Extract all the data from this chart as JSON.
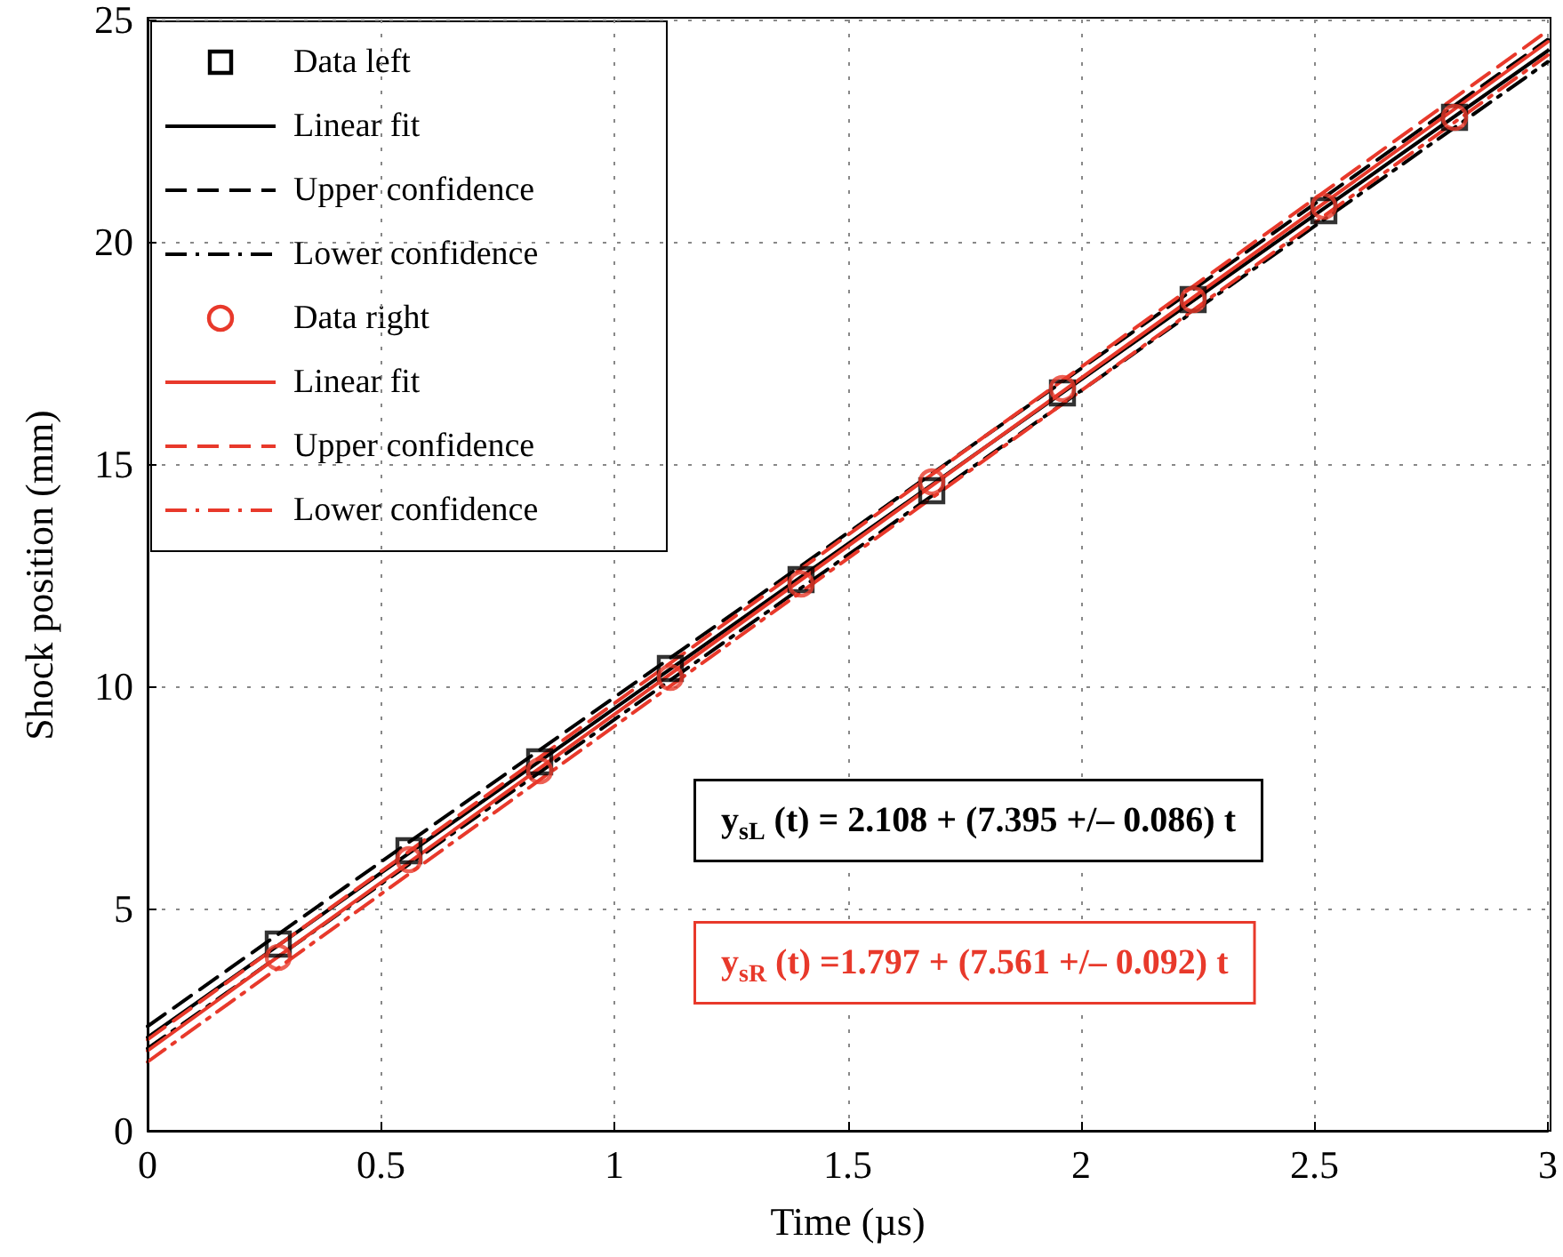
{
  "chart_data": {
    "type": "line",
    "xlabel": "Time (µs)",
    "ylabel": "Shock position (mm)",
    "xlim": [
      0,
      3
    ],
    "ylim": [
      0,
      25
    ],
    "xticks": [
      0,
      0.5,
      1,
      1.5,
      2,
      2.5,
      3
    ],
    "yticks": [
      0,
      5,
      10,
      15,
      20,
      25
    ],
    "grid": true,
    "legend": "top left",
    "annotations": [
      "y$_{sL}$ (t) = 2.108 + (7.395 +/– 0.086) t",
      "y$_{sR}$ (t) =1.797 + (7.561 +/– 0.092) t"
    ],
    "series": [
      {
        "name": "Data left",
        "type": "scatter",
        "marker": "square",
        "color": "#000000",
        "x": [
          0.28,
          0.56,
          0.84,
          1.12,
          1.4,
          1.68,
          1.96,
          2.24,
          2.52,
          2.8
        ],
        "values": [
          4.2,
          6.3,
          8.3,
          10.4,
          12.4,
          14.4,
          16.6,
          18.7,
          20.7,
          22.8
        ]
      },
      {
        "name": "Linear fit",
        "line_style": "solid",
        "color": "#000000",
        "x": [
          0,
          3
        ],
        "values": [
          2.1,
          24.3
        ]
      },
      {
        "name": "Upper confidence",
        "line_style": "dashed",
        "color": "#000000",
        "x": [
          0,
          3
        ],
        "values": [
          2.35,
          24.55
        ]
      },
      {
        "name": "Lower confidence",
        "line_style": "dashdot",
        "color": "#000000",
        "x": [
          0,
          3
        ],
        "values": [
          1.85,
          24.05
        ]
      },
      {
        "name": "Data right",
        "type": "scatter",
        "marker": "circle",
        "color": "#e8392b",
        "x": [
          0.28,
          0.56,
          0.84,
          1.12,
          1.4,
          1.68,
          1.96,
          2.24,
          2.52,
          2.8
        ],
        "values": [
          3.9,
          6.1,
          8.1,
          10.2,
          12.3,
          14.6,
          16.7,
          18.7,
          20.8,
          22.8
        ]
      },
      {
        "name": "Linear fit",
        "line_style": "solid",
        "color": "#e8392b",
        "x": [
          0,
          3
        ],
        "values": [
          1.8,
          24.5
        ]
      },
      {
        "name": "Upper confidence",
        "line_style": "dashed",
        "color": "#e8392b",
        "x": [
          0,
          3
        ],
        "values": [
          2.05,
          24.75
        ]
      },
      {
        "name": "Lower confidence",
        "line_style": "dashdot",
        "color": "#e8392b",
        "x": [
          0,
          3
        ],
        "values": [
          1.55,
          24.2
        ]
      }
    ]
  }
}
